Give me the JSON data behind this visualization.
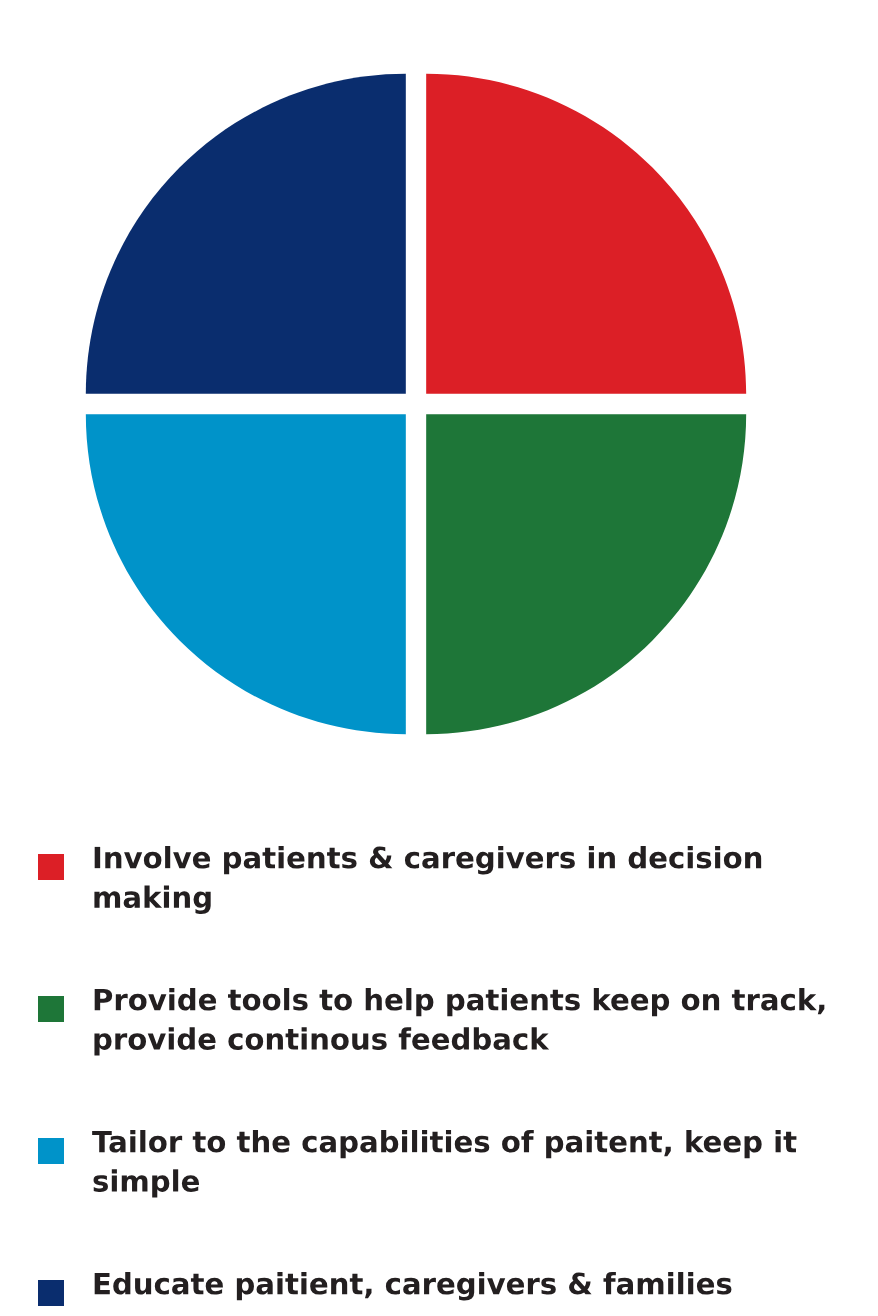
{
  "chart_data": {
    "type": "pie",
    "categories": [
      "Involve patients & caregivers in decision making",
      "Provide tools to help patients keep on track, provide continous feedback",
      "Tailor to the capabilities of paitent, keep it simple",
      "Educate paitient, caregivers & families"
    ],
    "values": [
      25,
      25,
      25,
      25
    ],
    "colors": [
      "#dc1f26",
      "#1e7638",
      "#0093c9",
      "#0a2d6e"
    ],
    "legend": "bottom"
  }
}
